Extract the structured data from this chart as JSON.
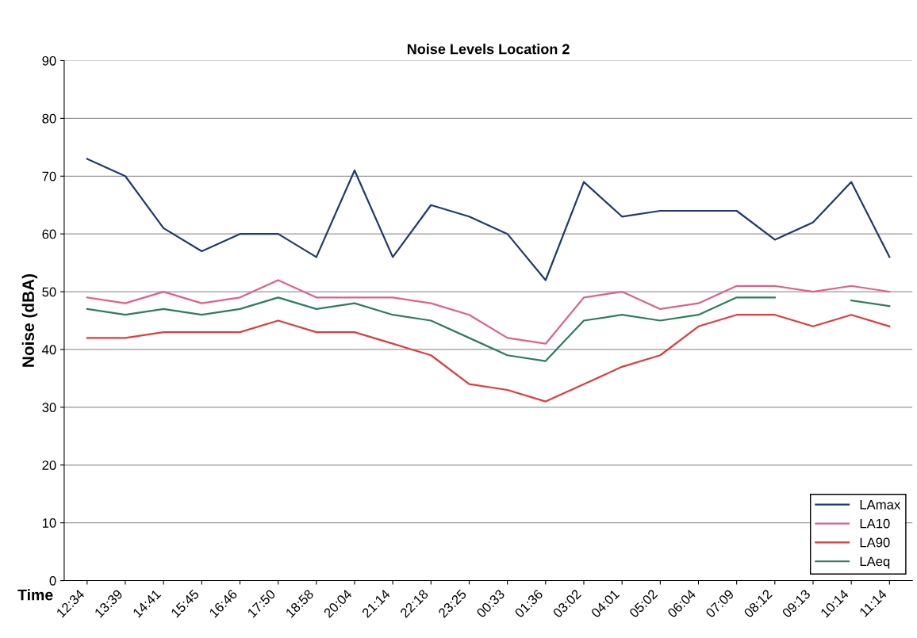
{
  "chart_data": {
    "type": "line",
    "title": "Noise Levels Location 2",
    "xlabel": "Time",
    "ylabel": "Noise (dBA)",
    "categories": [
      "12:34",
      "13:39",
      "14:41",
      "15:45",
      "16:46",
      "17:50",
      "18:58",
      "20:04",
      "21:14",
      "22:18",
      "23:25",
      "00:33",
      "01:36",
      "03:02",
      "04:01",
      "05:02",
      "06:04",
      "07:09",
      "08:12",
      "09:13",
      "10:14",
      "11:14"
    ],
    "series": [
      {
        "name": "LAmax",
        "color": "#1f3a6e",
        "values": [
          73,
          70,
          61,
          57,
          60,
          60,
          56,
          71,
          56,
          65,
          63,
          60,
          52,
          69,
          63,
          64,
          64,
          64,
          59,
          62,
          69,
          56
        ]
      },
      {
        "name": "LA10",
        "color": "#e0608a",
        "values": [
          49,
          48,
          50,
          48,
          49,
          52,
          49,
          49,
          49,
          48,
          46,
          42,
          41,
          49,
          50,
          47,
          48,
          51,
          51,
          50,
          51,
          50
        ]
      },
      {
        "name": "LA90",
        "color": "#e03c3c",
        "values": [
          42,
          42,
          43,
          43,
          43,
          45,
          43,
          43,
          41,
          39,
          34,
          33,
          31,
          34,
          37,
          39,
          44,
          46,
          46,
          44,
          46,
          44
        ]
      },
      {
        "name": "LAeq",
        "color": "#2e7d5b",
        "values": [
          47,
          46,
          47,
          46,
          47,
          49,
          47,
          48,
          46,
          45,
          42,
          39,
          38,
          45,
          46,
          45,
          46,
          49,
          49,
          null,
          48.5,
          47.5
        ]
      }
    ],
    "ylim": [
      0,
      90
    ],
    "yticks": [
      0,
      10,
      20,
      30,
      40,
      50,
      60,
      70,
      80,
      90
    ],
    "grid": "y",
    "legend": "bottom right",
    "marker": "none",
    "line_style": "solid"
  }
}
